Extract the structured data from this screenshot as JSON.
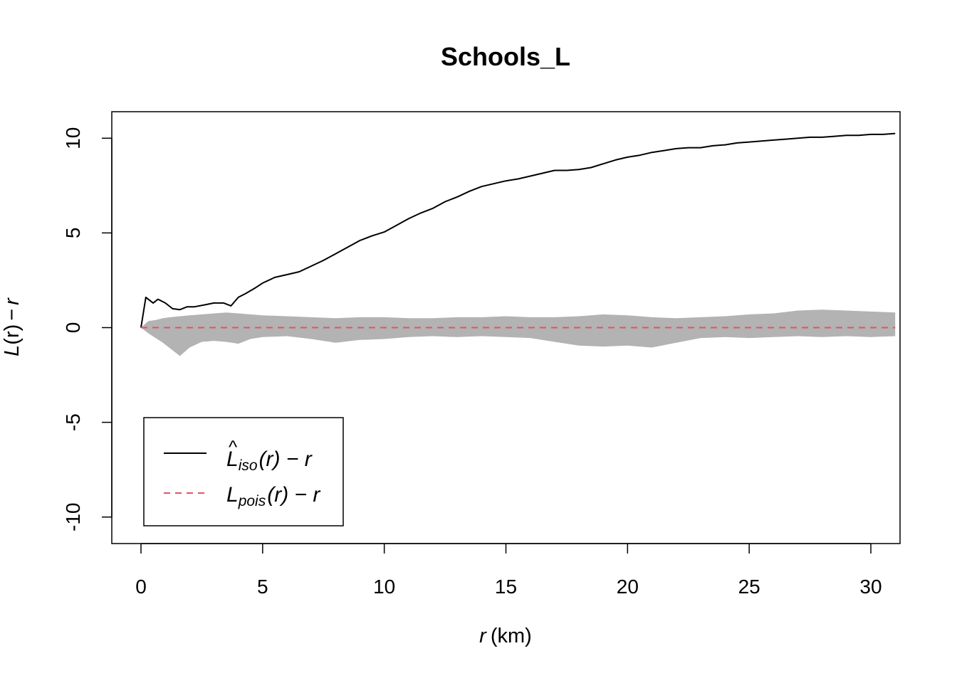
{
  "chart_data": {
    "type": "line",
    "title": "Schools_L",
    "xlabel": {
      "var": "r",
      "unit": "(km)"
    },
    "ylabel": {
      "main": "L",
      "arg": "(r)",
      "minus": "−",
      "r": "r"
    },
    "xlim": [
      -1.2,
      31.2
    ],
    "ylim": [
      -11.4,
      11.4
    ],
    "xticks": [
      0,
      5,
      10,
      15,
      20,
      25,
      30
    ],
    "yticks": [
      -10,
      -5,
      0,
      5,
      10
    ],
    "xtick_labels": [
      "0",
      "5",
      "10",
      "15",
      "20",
      "25",
      "30"
    ],
    "ytick_labels": [
      "-10",
      "-5",
      "0",
      "5",
      "10"
    ],
    "grid": false,
    "legend_position": "bottom-left",
    "legend": [
      {
        "sym": "L",
        "hat": "^",
        "sub": "iso",
        "tail": "(r) − r",
        "style": "solid",
        "color": "#000000"
      },
      {
        "sym": "L",
        "hat": "",
        "sub": "pois",
        "tail": "(r) − r",
        "style": "dashed",
        "color": "#DF536B"
      }
    ],
    "series": [
      {
        "key": "iso",
        "style": "solid",
        "color": "#000000",
        "x": [
          0,
          0.2,
          0.5,
          0.7,
          1.0,
          1.3,
          1.6,
          1.9,
          2.2,
          2.6,
          3.0,
          3.4,
          3.7,
          4.0,
          4.3,
          4.7,
          5.0,
          5.5,
          6.0,
          6.5,
          7.0,
          7.5,
          8.0,
          8.5,
          9.0,
          9.5,
          10.0,
          10.5,
          11.0,
          11.5,
          12.0,
          12.5,
          13.0,
          13.5,
          14.0,
          14.5,
          15.0,
          15.5,
          16.0,
          16.5,
          17.0,
          17.5,
          18.0,
          18.5,
          19.0,
          19.5,
          20.0,
          20.5,
          21.0,
          21.5,
          22.0,
          22.5,
          23.0,
          23.5,
          24.0,
          24.5,
          25.0,
          25.5,
          26.0,
          26.5,
          27.0,
          27.5,
          28.0,
          28.5,
          29.0,
          29.5,
          30.0,
          30.5,
          31.0
        ],
        "y": [
          0,
          1.6,
          1.3,
          1.5,
          1.3,
          1.0,
          0.95,
          1.1,
          1.1,
          1.2,
          1.3,
          1.3,
          1.15,
          1.6,
          1.8,
          2.1,
          2.35,
          2.65,
          2.8,
          2.95,
          3.25,
          3.55,
          3.9,
          4.25,
          4.6,
          4.85,
          5.05,
          5.4,
          5.75,
          6.05,
          6.3,
          6.65,
          6.9,
          7.2,
          7.45,
          7.6,
          7.75,
          7.85,
          8.0,
          8.15,
          8.3,
          8.3,
          8.35,
          8.45,
          8.65,
          8.85,
          9.0,
          9.1,
          9.25,
          9.35,
          9.45,
          9.5,
          9.5,
          9.6,
          9.65,
          9.75,
          9.8,
          9.85,
          9.9,
          9.95,
          10.0,
          10.05,
          10.05,
          10.1,
          10.15,
          10.15,
          10.2,
          10.2,
          10.25
        ]
      },
      {
        "key": "pois",
        "style": "dashed",
        "color": "#DF536B",
        "x": [
          0,
          31
        ],
        "y": [
          0,
          0
        ]
      }
    ],
    "envelope": {
      "color": "#B3B3B3",
      "x": [
        0,
        0.3,
        0.6,
        0.9,
        1.2,
        1.6,
        2.0,
        2.5,
        3.0,
        3.5,
        4.0,
        4.5,
        5.0,
        6.0,
        7.0,
        8.0,
        9.0,
        10.0,
        11.0,
        12.0,
        13.0,
        14.0,
        15.0,
        16.0,
        17.0,
        18.0,
        19.0,
        20.0,
        21.0,
        22.0,
        23.0,
        24.0,
        25.0,
        26.0,
        27.0,
        28.0,
        29.0,
        30.0,
        31.0
      ],
      "upper": [
        0,
        0.35,
        0.4,
        0.5,
        0.55,
        0.6,
        0.65,
        0.7,
        0.75,
        0.8,
        0.75,
        0.7,
        0.65,
        0.6,
        0.55,
        0.5,
        0.55,
        0.55,
        0.5,
        0.5,
        0.55,
        0.55,
        0.6,
        0.55,
        0.55,
        0.6,
        0.7,
        0.65,
        0.55,
        0.5,
        0.55,
        0.6,
        0.7,
        0.75,
        0.9,
        0.95,
        0.9,
        0.85,
        0.8
      ],
      "lower": [
        0,
        -0.3,
        -0.55,
        -0.8,
        -1.1,
        -1.5,
        -1.05,
        -0.75,
        -0.7,
        -0.75,
        -0.85,
        -0.6,
        -0.5,
        -0.45,
        -0.6,
        -0.8,
        -0.65,
        -0.6,
        -0.5,
        -0.45,
        -0.5,
        -0.45,
        -0.5,
        -0.55,
        -0.75,
        -0.95,
        -1.0,
        -0.95,
        -1.05,
        -0.8,
        -0.55,
        -0.5,
        -0.55,
        -0.5,
        -0.45,
        -0.5,
        -0.45,
        -0.5,
        -0.45
      ]
    }
  }
}
